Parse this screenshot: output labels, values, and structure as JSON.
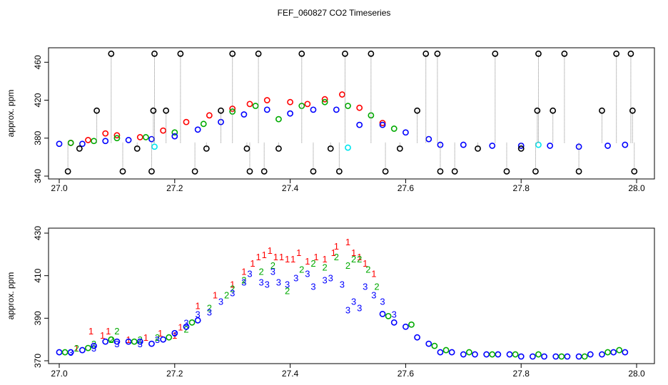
{
  "chart_data": [
    {
      "type": "scatter",
      "title": "FEF_060827  CO2 Timeseries",
      "xlabel": "",
      "ylabel": "approx. ppm",
      "xlim": [
        27.0,
        28.0
      ],
      "ylim": [
        340,
        470
      ],
      "xticks": [
        27.0,
        27.2,
        27.4,
        27.6,
        27.8,
        28.0
      ],
      "xtick_labels": [
        "27.0",
        "27.2",
        "27.4",
        "27.6",
        "27.8",
        "28.0"
      ],
      "yticks": [
        340,
        380,
        420,
        460
      ],
      "ytick_labels": [
        "340",
        "380",
        "420",
        "460"
      ],
      "series": [
        {
          "name": "1",
          "color": "#ff0000",
          "marker": "circle",
          "x": [
            27.02,
            27.05,
            27.08,
            27.1,
            27.14,
            27.18,
            27.22,
            27.26,
            27.3,
            27.33,
            27.36,
            27.4,
            27.43,
            27.46,
            27.49,
            27.52,
            27.56
          ],
          "y": [
            375,
            378,
            385,
            383,
            381,
            388,
            397,
            404,
            411,
            416,
            420,
            418,
            416,
            421,
            426,
            412,
            396
          ]
        },
        {
          "name": "2",
          "color": "#00aa00",
          "marker": "circle",
          "x": [
            27.02,
            27.06,
            27.1,
            27.15,
            27.2,
            27.25,
            27.3,
            27.34,
            27.38,
            27.42,
            27.46,
            27.5,
            27.54,
            27.58
          ],
          "y": [
            375,
            377,
            380,
            381,
            386,
            395,
            408,
            414,
            400,
            414,
            418,
            414,
            404,
            390
          ]
        },
        {
          "name": "3",
          "color": "#0000ff",
          "marker": "circle",
          "x": [
            27.0,
            27.04,
            27.08,
            27.12,
            27.16,
            27.2,
            27.24,
            27.28,
            27.32,
            27.36,
            27.4,
            27.44,
            27.48,
            27.52,
            27.56,
            27.6,
            27.64,
            27.66,
            27.7,
            27.75,
            27.8,
            27.85,
            27.9,
            27.95,
            27.98
          ],
          "y": [
            374,
            374,
            377,
            378,
            379,
            382,
            389,
            397,
            405,
            410,
            406,
            410,
            410,
            394,
            394,
            386,
            379,
            373,
            373,
            372,
            372,
            372,
            371,
            372,
            373
          ]
        },
        {
          "name": "cyan",
          "color": "#00e5ee",
          "marker": "circle",
          "x": [
            27.165,
            27.5,
            27.83
          ],
          "y": [
            371,
            370,
            373
          ]
        },
        {
          "name": "black",
          "color": "#000000",
          "marker": "circle",
          "x": [
            27.015,
            27.035,
            27.065,
            27.09,
            27.11,
            27.135,
            27.16,
            27.163,
            27.165,
            27.185,
            27.21,
            27.235,
            27.255,
            27.28,
            27.3,
            27.325,
            27.33,
            27.345,
            27.355,
            27.38,
            27.42,
            27.44,
            27.47,
            27.485,
            27.495,
            27.54,
            27.565,
            27.59,
            27.62,
            27.635,
            27.655,
            27.66,
            27.685,
            27.725,
            27.755,
            27.775,
            27.8,
            27.825,
            27.828,
            27.83,
            27.855,
            27.875,
            27.9,
            27.94,
            27.965,
            27.99,
            27.993,
            27.996
          ],
          "y": [
            345,
            369,
            409,
            469,
            345,
            369,
            345,
            409,
            469,
            409,
            469,
            345,
            369,
            409,
            469,
            369,
            345,
            469,
            345,
            369,
            469,
            345,
            369,
            345,
            469,
            469,
            345,
            369,
            409,
            469,
            469,
            345,
            345,
            369,
            469,
            345,
            369,
            345,
            409,
            469,
            409,
            469,
            345,
            409,
            469,
            469,
            409,
            345
          ]
        }
      ]
    },
    {
      "type": "scatter",
      "title": "",
      "xlabel": "",
      "ylabel": "approx. ppm",
      "xlim": [
        27.0,
        28.0
      ],
      "ylim": [
        370,
        430
      ],
      "xticks": [
        27.0,
        27.2,
        27.4,
        27.6,
        27.8,
        28.0
      ],
      "xtick_labels": [
        "27.0",
        "27.2",
        "27.4",
        "27.6",
        "27.8",
        "28.0"
      ],
      "yticks": [
        370,
        390,
        410,
        430
      ],
      "ytick_labels": [
        "370",
        "390",
        "410",
        "430"
      ],
      "series": [
        {
          "name": "1",
          "color": "#ff0000",
          "label": "1",
          "x": [
            27.03,
            27.055,
            27.075,
            27.085,
            27.12,
            27.15,
            27.175,
            27.2,
            27.21,
            27.24,
            27.27,
            27.3,
            27.32,
            27.335,
            27.345,
            27.355,
            27.365,
            27.375,
            27.385,
            27.395,
            27.405,
            27.415,
            27.43,
            27.445,
            27.46,
            27.475,
            27.48,
            27.5,
            27.51,
            27.52,
            27.53,
            27.545
          ],
          "y": [
            376,
            384,
            382,
            384,
            380,
            381,
            383,
            382,
            386,
            396,
            401,
            406,
            412,
            416,
            419,
            420,
            422,
            419,
            419,
            418,
            418,
            421,
            417,
            419,
            418,
            421,
            424,
            426,
            421,
            419,
            416,
            411
          ]
        },
        {
          "name": "2",
          "color": "#00aa00",
          "label": "2",
          "x": [
            27.03,
            27.06,
            27.09,
            27.1,
            27.14,
            27.17,
            27.22,
            27.26,
            27.29,
            27.3,
            27.32,
            27.35,
            27.37,
            27.395,
            27.42,
            27.44,
            27.46,
            27.48,
            27.5,
            27.51,
            27.52,
            27.535,
            27.55
          ],
          "y": [
            376,
            378,
            380,
            384,
            380,
            381,
            385,
            395,
            401,
            404,
            408,
            412,
            415,
            403,
            413,
            416,
            414,
            419,
            415,
            418,
            418,
            413,
            405
          ]
        },
        {
          "name": "3",
          "color": "#0000ff",
          "label": "3",
          "x": [
            27.02,
            27.06,
            27.1,
            27.14,
            27.17,
            27.2,
            27.22,
            27.24,
            27.26,
            27.28,
            27.3,
            27.32,
            27.33,
            27.35,
            27.36,
            27.37,
            27.38,
            27.395,
            27.41,
            27.43,
            27.44,
            27.46,
            27.47,
            27.49,
            27.5,
            27.51,
            27.52,
            27.53,
            27.545,
            27.56,
            27.58
          ],
          "y": [
            374,
            376,
            378,
            378,
            380,
            383,
            388,
            392,
            393,
            398,
            402,
            407,
            411,
            407,
            406,
            412,
            407,
            406,
            409,
            411,
            405,
            408,
            409,
            406,
            394,
            398,
            395,
            405,
            401,
            398,
            392
          ]
        },
        {
          "name": "circles-blue",
          "color": "#0000ff",
          "marker": "circle",
          "x": [
            27.0,
            27.02,
            27.04,
            27.06,
            27.08,
            27.1,
            27.12,
            27.14,
            27.16,
            27.18,
            27.2,
            27.22,
            27.24,
            27.56,
            27.58,
            27.6,
            27.62,
            27.64,
            27.66,
            27.68,
            27.7,
            27.72,
            27.74,
            27.76,
            27.78,
            27.8,
            27.82,
            27.84,
            27.86,
            27.88,
            27.9,
            27.92,
            27.94,
            27.96,
            27.98
          ],
          "y": [
            374,
            374,
            375,
            377,
            379,
            379,
            379,
            379,
            378,
            380,
            383,
            386,
            389,
            392,
            388,
            386,
            381,
            378,
            374,
            374,
            373,
            373,
            373,
            373,
            373,
            372,
            372,
            372,
            372,
            372,
            372,
            373,
            373,
            374,
            374
          ]
        },
        {
          "name": "circles-green",
          "color": "#00aa00",
          "marker": "circle",
          "x": [
            27.01,
            27.05,
            27.09,
            27.13,
            27.19,
            27.23,
            27.57,
            27.61,
            27.65,
            27.67,
            27.71,
            27.75,
            27.79,
            27.83,
            27.87,
            27.91,
            27.95,
            27.97
          ],
          "y": [
            374,
            376,
            380,
            379,
            381,
            388,
            391,
            387,
            377,
            375,
            374,
            373,
            373,
            373,
            372,
            372,
            374,
            375
          ]
        }
      ]
    }
  ]
}
